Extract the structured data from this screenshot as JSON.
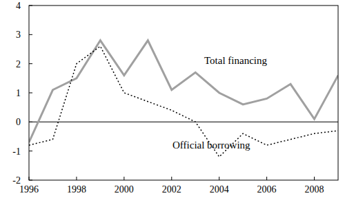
{
  "chart_data": {
    "type": "line",
    "x": [
      1996,
      1997,
      1998,
      1999,
      2000,
      2001,
      2002,
      2003,
      2004,
      2005,
      2006,
      2007,
      2008,
      2009
    ],
    "series": [
      {
        "name": "Total financing",
        "color": "#a0a0a0",
        "line_style": "solid",
        "values": [
          -0.7,
          1.1,
          1.5,
          2.8,
          1.6,
          2.8,
          1.1,
          1.7,
          1.0,
          0.6,
          0.8,
          1.3,
          0.1,
          1.6
        ]
      },
      {
        "name": "Official borrowing",
        "color": "#000000",
        "line_style": "dotted",
        "values": [
          -0.8,
          -0.6,
          2.0,
          2.6,
          1.0,
          0.7,
          0.4,
          0.0,
          -1.2,
          -0.4,
          -0.8,
          -0.6,
          -0.4,
          -0.3
        ]
      }
    ],
    "xlim": [
      1996,
      2009
    ],
    "xticks": [
      1996,
      1998,
      2000,
      2002,
      2004,
      2006,
      2008
    ],
    "ylim": [
      -2,
      4
    ],
    "yticks": [
      -2,
      -1,
      0,
      1,
      2,
      3,
      4
    ],
    "grid": false
  }
}
